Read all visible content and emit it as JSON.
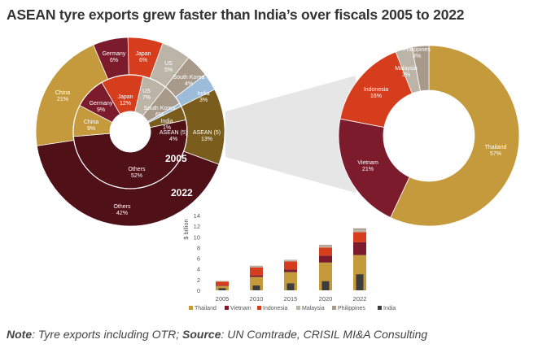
{
  "title": "ASEAN tyre exports grew faster than India’s over fiscals 2005 to 2022",
  "note": {
    "note_label": "Note",
    "note_text": ": Tyre exports including OTR; ",
    "source_label": "Source",
    "source_text": ": UN Comtrade, CRISIL MI&A Consulting"
  },
  "colors": {
    "thailand_china": "#c49a3c",
    "germany_vietnam": "#7b1b2c",
    "japan_indonesia": "#d63d1c",
    "us_malaysia": "#bdb4a8",
    "southkorea_philippines": "#a79a8b",
    "india_share": "#9dbcd9",
    "india_bar": "#3d3d3d",
    "asean": "#7a5c1c",
    "others": "#4f1018",
    "connector": "#e6e6e6"
  },
  "chart_data": [
    {
      "type": "pie",
      "title": "",
      "rings": [
        {
          "name": "2005",
          "slices": [
            {
              "label": "Japan",
              "value": 12,
              "color": "#d63d1c"
            },
            {
              "label": "US",
              "value": 7,
              "color": "#bdb4a8"
            },
            {
              "label": "South Korea",
              "value": 6,
              "color": "#a79a8b"
            },
            {
              "label": "India",
              "value": 1,
              "color": "#9dbcd9"
            },
            {
              "label": "ASEAN (5)",
              "value": 4,
              "color": "#7a5c1c"
            },
            {
              "label": "Others",
              "value": 52,
              "color": "#4f1018"
            },
            {
              "label": "China",
              "value": 9,
              "color": "#c49a3c"
            },
            {
              "label": "Germany",
              "value": 9,
              "color": "#7b1b2c"
            }
          ]
        },
        {
          "name": "2022",
          "slices": [
            {
              "label": "Germany",
              "value": 6,
              "color": "#7b1b2c"
            },
            {
              "label": "Japan",
              "value": 6,
              "color": "#d63d1c"
            },
            {
              "label": "US",
              "value": 5,
              "color": "#bdb4a8"
            },
            {
              "label": "South Korea",
              "value": 4,
              "color": "#a79a8b"
            },
            {
              "label": "India",
              "value": 3,
              "color": "#9dbcd9"
            },
            {
              "label": "ASEAN (5)",
              "value": 13,
              "color": "#7a5c1c"
            },
            {
              "label": "Others",
              "value": 42,
              "color": "#4f1018"
            },
            {
              "label": "China",
              "value": 21,
              "color": "#c49a3c"
            }
          ]
        }
      ]
    },
    {
      "type": "pie",
      "title": "",
      "slices": [
        {
          "label": "Thailand",
          "value": 57,
          "color": "#c49a3c"
        },
        {
          "label": "Vietnam",
          "value": 21,
          "color": "#7b1b2c"
        },
        {
          "label": "Indonesia",
          "value": 16,
          "color": "#d63d1c"
        },
        {
          "label": "Malaysia",
          "value": 3,
          "color": "#bdb4a8"
        },
        {
          "label": "Philippines",
          "value": 3,
          "color": "#a79a8b"
        }
      ]
    },
    {
      "type": "bar",
      "stacked": true,
      "categories": [
        "2005",
        "2010",
        "2015",
        "2020",
        "2022"
      ],
      "ylabel": "$ billion",
      "ylim": [
        0,
        14
      ],
      "yticks": [
        "0",
        "2",
        "4",
        "6",
        "8",
        "10",
        "12",
        "14"
      ],
      "grid": false,
      "legend_position": "bottom",
      "series": [
        {
          "name": "Thailand",
          "values": [
            0.8,
            2.5,
            3.4,
            5.2,
            6.6
          ],
          "color": "#c49a3c"
        },
        {
          "name": "Vietnam",
          "values": [
            0.1,
            0.3,
            0.5,
            1.3,
            2.4
          ],
          "color": "#7b1b2c"
        },
        {
          "name": "Indonesia",
          "values": [
            0.7,
            1.5,
            1.5,
            1.5,
            1.9
          ],
          "color": "#d63d1c"
        },
        {
          "name": "Malaysia",
          "values": [
            0.1,
            0.2,
            0.2,
            0.3,
            0.4
          ],
          "color": "#bdb4a8"
        },
        {
          "name": "Philippines",
          "values": [
            0.05,
            0.1,
            0.1,
            0.2,
            0.3
          ],
          "color": "#a79a8b"
        },
        {
          "name": "India",
          "values": [
            0.4,
            0.9,
            1.3,
            1.7,
            3.0
          ],
          "color": "#3d3d3d",
          "overlay": true
        }
      ]
    }
  ]
}
